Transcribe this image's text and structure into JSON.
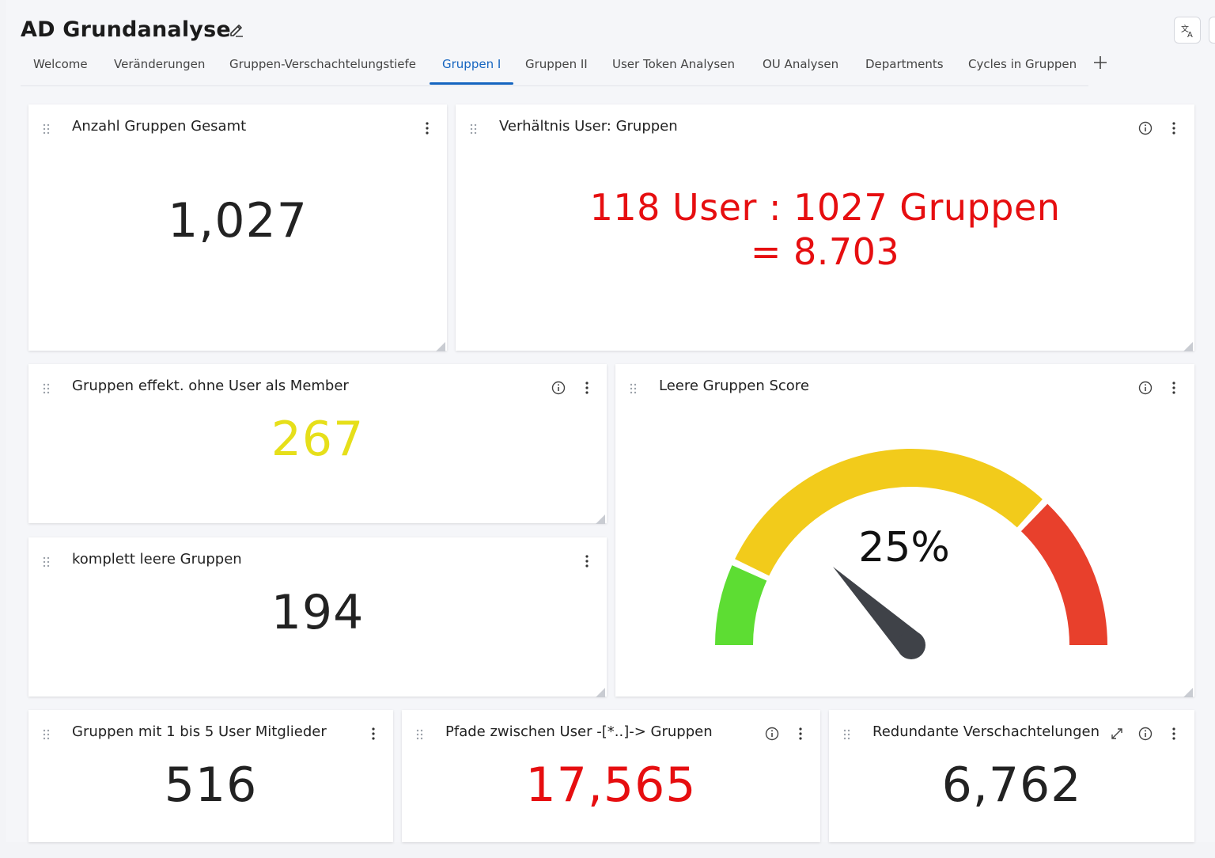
{
  "app": {
    "title": "AD Grundanalyse"
  },
  "tabs": [
    {
      "label": "Welcome"
    },
    {
      "label": "Veränderungen"
    },
    {
      "label": "Gruppen-Verschachtelungstiefe"
    },
    {
      "label": "Gruppen I"
    },
    {
      "label": "Gruppen II"
    },
    {
      "label": "User Token Analysen"
    },
    {
      "label": "OU Analysen"
    },
    {
      "label": "Departments"
    },
    {
      "label": "Cycles in Gruppen"
    }
  ],
  "active_tab": "Gruppen I",
  "colors": {
    "accent": "#1565c0",
    "red": "#e60e10",
    "yellow": "#e6df1a",
    "gauge_green": "#5ddd33",
    "gauge_yellow": "#f2cb1b",
    "gauge_red": "#e8402c",
    "needle": "#3f4248"
  },
  "widgets": {
    "total_groups": {
      "title": "Anzahl Gruppen Gesamt",
      "value": "1,027"
    },
    "ratio": {
      "title": "Verhältnis User: Gruppen",
      "line1": "118 User : 1027 Gruppen",
      "line2": "= 8.703"
    },
    "no_user_members": {
      "title": "Gruppen effekt. ohne User als Member",
      "value": "267"
    },
    "empty_score": {
      "title": "Leere Gruppen Score",
      "value": "25%",
      "percent": 25
    },
    "empty_groups": {
      "title": "komplett leere Gruppen",
      "value": "194"
    },
    "small_groups": {
      "title": "Gruppen mit 1 bis 5 User Mitglieder",
      "value": "516"
    },
    "paths": {
      "title": "Pfade zwischen User -[*..]-> Gruppen",
      "value": "17,565"
    },
    "redundant": {
      "title": "Redundante Verschachtelungen",
      "value": "6,762"
    }
  },
  "icons": {
    "edit": "pencil-icon",
    "translate": "translate-icon",
    "add": "plus-icon",
    "drag": "drag-handle-icon",
    "menu": "kebab-menu-icon",
    "info": "info-icon",
    "expand": "expand-icon"
  }
}
